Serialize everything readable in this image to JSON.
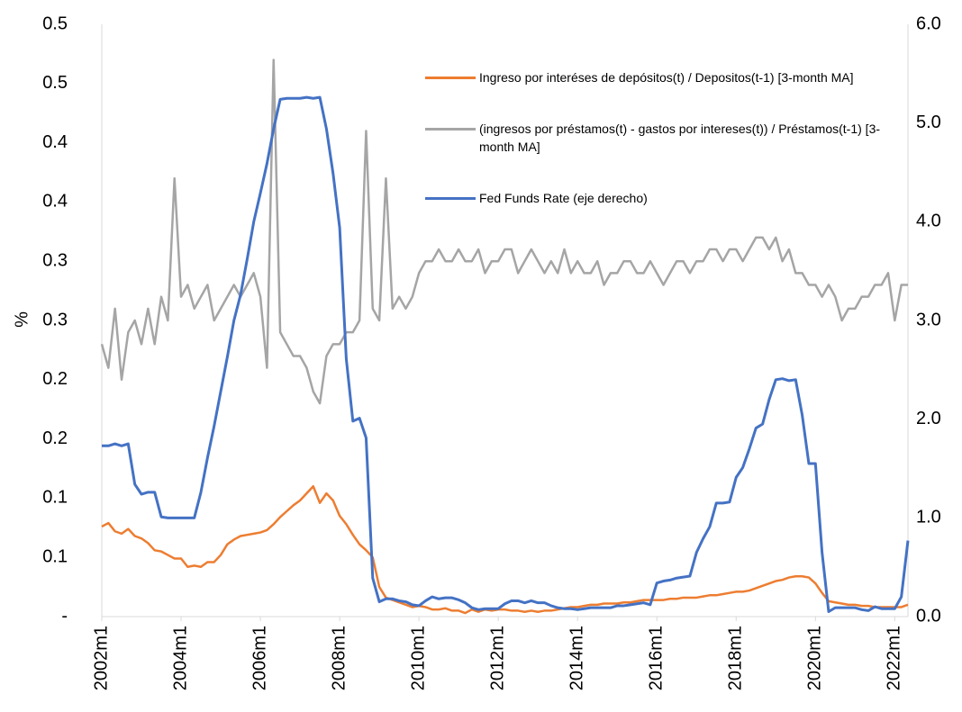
{
  "chart_data": {
    "type": "line",
    "y_label": "%",
    "categories": [
      "2002m1",
      null,
      null,
      null,
      null,
      null,
      null,
      null,
      null,
      null,
      null,
      null,
      "2004m1",
      null,
      null,
      null,
      null,
      null,
      null,
      null,
      null,
      null,
      null,
      null,
      "2006m1",
      null,
      null,
      null,
      null,
      null,
      null,
      null,
      null,
      null,
      null,
      null,
      "2008m1",
      null,
      null,
      null,
      null,
      null,
      null,
      null,
      null,
      null,
      null,
      null,
      "2010m1",
      null,
      null,
      null,
      null,
      null,
      null,
      null,
      null,
      null,
      null,
      null,
      "2012m1",
      null,
      null,
      null,
      null,
      null,
      null,
      null,
      null,
      null,
      null,
      null,
      "2014m1",
      null,
      null,
      null,
      null,
      null,
      null,
      null,
      null,
      null,
      null,
      null,
      "2016m1",
      null,
      null,
      null,
      null,
      null,
      null,
      null,
      null,
      null,
      null,
      null,
      "2018m1",
      null,
      null,
      null,
      null,
      null,
      null,
      null,
      null,
      null,
      null,
      null,
      "2020m1",
      null,
      null,
      null,
      null,
      null,
      null,
      null,
      null,
      null,
      null,
      null,
      "2022m1",
      null,
      null
    ],
    "series": [
      {
        "name": "Ingreso por interéses de depósitos(t) / Depositos(t-1) [3-month MA]",
        "color": "#ed7d31",
        "axis": "y",
        "values": [
          0.076,
          0.079,
          0.072,
          0.07,
          0.074,
          0.068,
          0.066,
          0.062,
          0.056,
          0.055,
          0.052,
          0.049,
          0.049,
          0.042,
          0.043,
          0.042,
          0.046,
          0.046,
          0.052,
          0.061,
          0.065,
          0.068,
          0.069,
          0.07,
          0.071,
          0.073,
          0.078,
          0.084,
          0.089,
          0.094,
          0.098,
          0.104,
          0.11,
          0.096,
          0.104,
          0.098,
          0.085,
          0.078,
          0.069,
          0.061,
          0.056,
          0.05,
          0.025,
          0.016,
          0.014,
          0.012,
          0.01,
          0.008,
          0.009,
          0.008,
          0.006,
          0.006,
          0.007,
          0.005,
          0.005,
          0.003,
          0.006,
          0.004,
          0.006,
          0.005,
          0.006,
          0.006,
          0.005,
          0.005,
          0.004,
          0.005,
          0.004,
          0.005,
          0.005,
          0.006,
          0.007,
          0.008,
          0.008,
          0.009,
          0.01,
          0.01,
          0.011,
          0.011,
          0.011,
          0.012,
          0.012,
          0.013,
          0.014,
          0.014,
          0.014,
          0.014,
          0.015,
          0.015,
          0.016,
          0.016,
          0.016,
          0.017,
          0.018,
          0.018,
          0.019,
          0.02,
          0.021,
          0.021,
          0.022,
          0.024,
          0.026,
          0.028,
          0.03,
          0.031,
          0.033,
          0.034,
          0.034,
          0.033,
          0.028,
          0.02,
          0.013,
          0.012,
          0.011,
          0.01,
          0.01,
          0.009,
          0.009,
          0.008,
          0.008,
          0.008,
          0.008,
          0.008,
          0.01
        ]
      },
      {
        "name": "(ingresos por préstamos(t) - gastos por intereses(t)) / Préstamos(t-1) [3-month MA]",
        "color": "#a5a5a5",
        "axis": "y",
        "values": [
          0.23,
          0.21,
          0.26,
          0.2,
          0.24,
          0.25,
          0.23,
          0.26,
          0.23,
          0.27,
          0.25,
          0.37,
          0.27,
          0.28,
          0.26,
          0.27,
          0.28,
          0.25,
          0.26,
          0.27,
          0.28,
          0.27,
          0.28,
          0.29,
          0.27,
          0.21,
          0.47,
          0.24,
          0.23,
          0.22,
          0.22,
          0.21,
          0.19,
          0.18,
          0.22,
          0.23,
          0.23,
          0.24,
          0.24,
          0.25,
          0.41,
          0.26,
          0.25,
          0.37,
          0.26,
          0.27,
          0.26,
          0.27,
          0.29,
          0.3,
          0.3,
          0.31,
          0.3,
          0.3,
          0.31,
          0.3,
          0.3,
          0.31,
          0.29,
          0.3,
          0.3,
          0.31,
          0.31,
          0.29,
          0.3,
          0.31,
          0.3,
          0.29,
          0.3,
          0.29,
          0.31,
          0.29,
          0.3,
          0.29,
          0.29,
          0.3,
          0.28,
          0.29,
          0.29,
          0.3,
          0.3,
          0.29,
          0.29,
          0.3,
          0.29,
          0.28,
          0.29,
          0.3,
          0.3,
          0.29,
          0.3,
          0.3,
          0.31,
          0.31,
          0.3,
          0.31,
          0.31,
          0.3,
          0.31,
          0.32,
          0.32,
          0.31,
          0.32,
          0.3,
          0.31,
          0.29,
          0.29,
          0.28,
          0.28,
          0.27,
          0.28,
          0.27,
          0.25,
          0.26,
          0.26,
          0.27,
          0.27,
          0.28,
          0.28,
          0.29,
          0.25,
          0.28,
          0.28
        ]
      },
      {
        "name": "Fed Funds Rate (eje derecho)",
        "color": "#4472c4",
        "axis": "y2",
        "values": [
          1.73,
          1.73,
          1.75,
          1.73,
          1.75,
          1.34,
          1.24,
          1.26,
          1.26,
          1.01,
          1.0,
          1.0,
          1.0,
          1.0,
          1.0,
          1.26,
          1.61,
          1.93,
          2.28,
          2.63,
          3.0,
          3.26,
          3.62,
          4.0,
          4.29,
          4.59,
          4.94,
          5.24,
          5.25,
          5.25,
          5.25,
          5.26,
          5.25,
          5.26,
          4.94,
          4.49,
          3.94,
          2.61,
          1.98,
          2.01,
          1.81,
          0.39,
          0.15,
          0.18,
          0.18,
          0.16,
          0.15,
          0.12,
          0.11,
          0.16,
          0.2,
          0.18,
          0.19,
          0.19,
          0.17,
          0.14,
          0.09,
          0.07,
          0.08,
          0.08,
          0.08,
          0.13,
          0.16,
          0.16,
          0.14,
          0.16,
          0.14,
          0.14,
          0.11,
          0.09,
          0.08,
          0.08,
          0.07,
          0.08,
          0.09,
          0.09,
          0.09,
          0.09,
          0.11,
          0.11,
          0.12,
          0.13,
          0.14,
          0.12,
          0.34,
          0.36,
          0.37,
          0.39,
          0.4,
          0.41,
          0.65,
          0.79,
          0.91,
          1.15,
          1.15,
          1.16,
          1.41,
          1.51,
          1.7,
          1.91,
          1.95,
          2.2,
          2.4,
          2.41,
          2.39,
          2.4,
          2.04,
          1.55,
          1.55,
          0.65,
          0.05,
          0.09,
          0.09,
          0.09,
          0.09,
          0.07,
          0.06,
          0.1,
          0.08,
          0.08,
          0.08,
          0.2,
          0.77
        ]
      }
    ],
    "ylim": [
      0,
      0.5
    ],
    "yticks": [
      {
        "value": 0,
        "label": "-"
      },
      {
        "value": 0.05,
        "label": "0.1"
      },
      {
        "value": 0.1,
        "label": "0.1"
      },
      {
        "value": 0.15,
        "label": "0.2"
      },
      {
        "value": 0.2,
        "label": "0.2"
      },
      {
        "value": 0.25,
        "label": "0.3"
      },
      {
        "value": 0.3,
        "label": "0.3"
      },
      {
        "value": 0.35,
        "label": "0.4"
      },
      {
        "value": 0.4,
        "label": "0.4"
      },
      {
        "value": 0.45,
        "label": "0.5"
      },
      {
        "value": 0.5,
        "label": "0.5"
      }
    ],
    "y2lim": [
      0,
      6
    ],
    "y2ticks": [
      {
        "value": 0,
        "label": "0.0"
      },
      {
        "value": 1,
        "label": "1.0"
      },
      {
        "value": 2,
        "label": "2.0"
      },
      {
        "value": 3,
        "label": "3.0"
      },
      {
        "value": 4,
        "label": "4.0"
      },
      {
        "value": 5,
        "label": "5.0"
      },
      {
        "value": 6,
        "label": "6.0"
      }
    ],
    "grid": false,
    "legend": "upper-right"
  }
}
